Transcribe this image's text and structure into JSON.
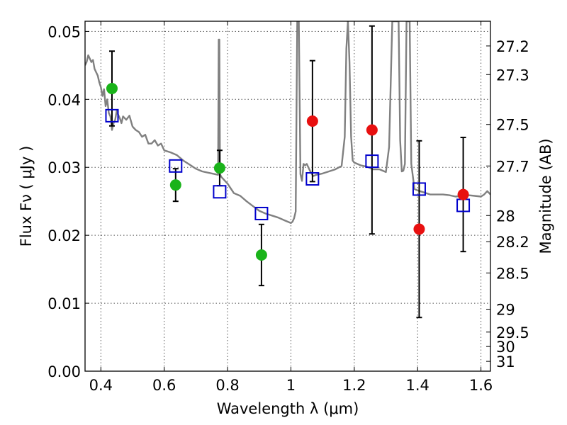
{
  "chart_data": {
    "type": "scatter",
    "title": "",
    "xlabel": "Wavelength  λ (μm)",
    "ylabel": "Flux  Fν  ( μJy )",
    "y2label": "Magnitude (AB)",
    "xlim": [
      0.35,
      1.63
    ],
    "ylim": [
      0.0,
      0.0515
    ],
    "grid": true,
    "x_ticks": [
      0.4,
      0.6,
      0.8,
      1.0,
      1.2,
      1.4,
      1.6
    ],
    "x_tick_labels": [
      "0.4",
      "0.6",
      "0.8",
      "1",
      "1.2",
      "1.4",
      "1.6"
    ],
    "y_ticks": [
      0.0,
      0.01,
      0.02,
      0.03,
      0.04,
      0.05
    ],
    "y_tick_labels": [
      "0.00",
      "0.01",
      "0.02",
      "0.03",
      "0.04",
      "0.05"
    ],
    "right_axis_mag_ticks": [
      "27.2",
      "27.3",
      "27.5",
      "27.7",
      "28",
      "28.2",
      "28.5",
      "29",
      "29.5",
      "30",
      "31"
    ],
    "colors": {
      "model": "#808080",
      "green_points": "#1ab31a",
      "red_points": "#e81010",
      "model_boxes": "#0000cc",
      "errorbars": "#000000"
    },
    "series": [
      {
        "kind": "model-spectrum",
        "x": [
          0.35,
          0.355,
          0.36,
          0.365,
          0.37,
          0.375,
          0.38,
          0.385,
          0.39,
          0.395,
          0.4,
          0.405,
          0.41,
          0.415,
          0.42,
          0.425,
          0.43,
          0.435,
          0.44,
          0.445,
          0.45,
          0.455,
          0.46,
          0.465,
          0.47,
          0.48,
          0.49,
          0.5,
          0.51,
          0.52,
          0.53,
          0.54,
          0.55,
          0.56,
          0.57,
          0.58,
          0.59,
          0.6,
          0.62,
          0.64,
          0.66,
          0.68,
          0.7,
          0.72,
          0.74,
          0.76,
          0.77,
          0.772,
          0.774,
          0.776,
          0.78,
          0.8,
          0.82,
          0.84,
          0.86,
          0.88,
          0.9,
          0.92,
          0.94,
          0.96,
          0.98,
          1.0,
          1.005,
          1.01,
          1.015,
          1.02,
          1.025,
          1.03,
          1.035,
          1.04,
          1.045,
          1.05,
          1.06,
          1.07,
          1.08,
          1.1,
          1.12,
          1.14,
          1.16,
          1.17,
          1.175,
          1.18,
          1.185,
          1.19,
          1.195,
          1.2,
          1.22,
          1.24,
          1.26,
          1.28,
          1.3,
          1.31,
          1.32,
          1.33,
          1.335,
          1.34,
          1.345,
          1.35,
          1.355,
          1.36,
          1.365,
          1.37,
          1.375,
          1.38,
          1.39,
          1.4,
          1.42,
          1.44,
          1.46,
          1.48,
          1.5,
          1.52,
          1.54,
          1.56,
          1.58,
          1.6,
          1.61,
          1.62,
          1.63
        ],
        "y": [
          0.045,
          0.0455,
          0.0465,
          0.046,
          0.0455,
          0.0458,
          0.0445,
          0.044,
          0.0435,
          0.0425,
          0.0418,
          0.0405,
          0.0415,
          0.039,
          0.04,
          0.038,
          0.0375,
          0.0355,
          0.0365,
          0.037,
          0.0383,
          0.0377,
          0.0372,
          0.0365,
          0.0375,
          0.037,
          0.0376,
          0.036,
          0.0355,
          0.0352,
          0.0345,
          0.0348,
          0.0335,
          0.0335,
          0.034,
          0.0332,
          0.0335,
          0.0325,
          0.0322,
          0.0318,
          0.031,
          0.0304,
          0.0298,
          0.0294,
          0.0292,
          0.029,
          0.0289,
          0.0488,
          0.0488,
          0.029,
          0.0286,
          0.0276,
          0.0262,
          0.0258,
          0.025,
          0.0243,
          0.0236,
          0.0232,
          0.0229,
          0.0226,
          0.0222,
          0.0218,
          0.022,
          0.0225,
          0.0235,
          0.0515,
          0.0515,
          0.029,
          0.028,
          0.0305,
          0.0303,
          0.0305,
          0.0295,
          0.0287,
          0.0289,
          0.0291,
          0.0294,
          0.0297,
          0.0302,
          0.0345,
          0.0475,
          0.0515,
          0.0455,
          0.0345,
          0.031,
          0.0307,
          0.0303,
          0.0301,
          0.0297,
          0.0297,
          0.0293,
          0.033,
          0.0515,
          0.0515,
          0.0515,
          0.0515,
          0.034,
          0.0294,
          0.0295,
          0.0305,
          0.0515,
          0.0515,
          0.0515,
          0.0305,
          0.0268,
          0.0266,
          0.0263,
          0.026,
          0.026,
          0.026,
          0.0259,
          0.0257,
          0.0258,
          0.0259,
          0.0258,
          0.0257,
          0.026,
          0.0265,
          0.026
        ]
      },
      {
        "kind": "green-points",
        "x": [
          0.435,
          0.636,
          0.775,
          0.907
        ],
        "y": [
          0.0416,
          0.0274,
          0.0299,
          0.0171
        ],
        "err": [
          0.0055,
          0.0024,
          0.0026,
          0.0045
        ]
      },
      {
        "kind": "red-points",
        "x": [
          1.068,
          1.256,
          1.405,
          1.544
        ],
        "y": [
          0.0368,
          0.0355,
          0.0209,
          0.026
        ],
        "err": [
          0.0089,
          0.0153,
          0.013,
          0.0084
        ]
      },
      {
        "kind": "model-boxes",
        "x": [
          0.435,
          0.636,
          0.775,
          0.907,
          1.068,
          1.256,
          1.405,
          1.544
        ],
        "y": [
          0.0376,
          0.0302,
          0.0264,
          0.0232,
          0.0283,
          0.0309,
          0.0268,
          0.0244
        ]
      }
    ]
  }
}
